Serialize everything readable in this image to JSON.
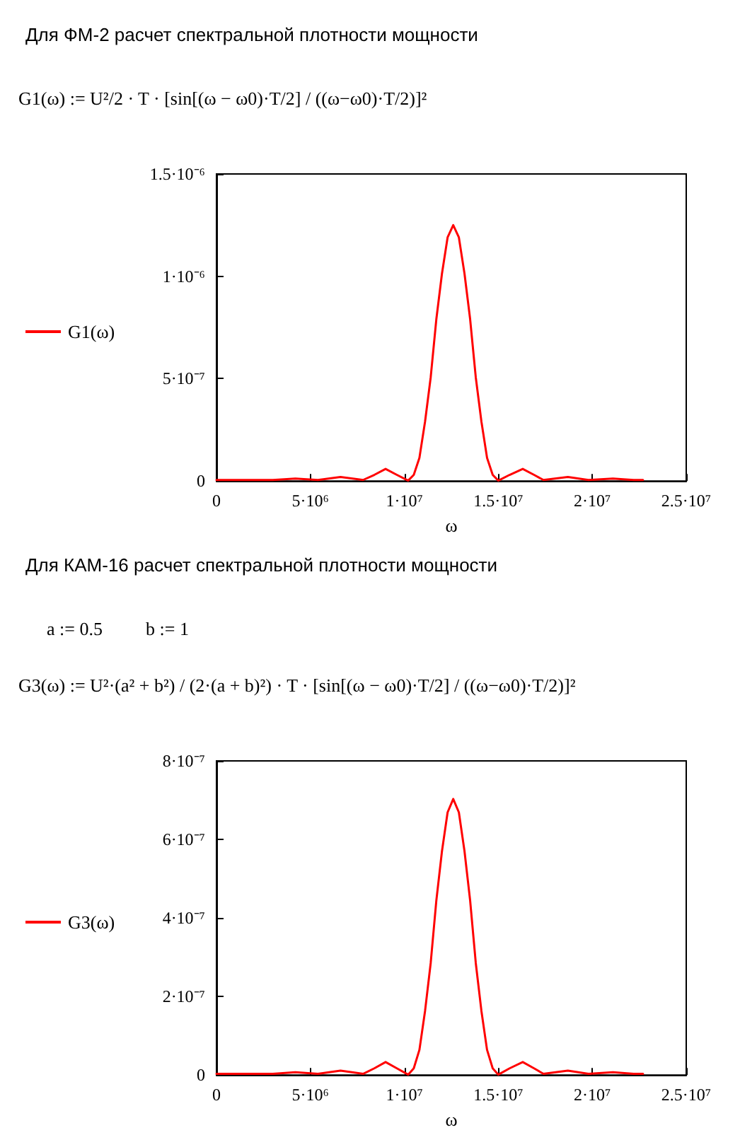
{
  "chart_data": [
    {
      "type": "line",
      "title": "Для ФМ-2 расчет спектральной плотности мощности",
      "annotations": [
        "G1(ω) := U²/2 · T · [sin[(ω − ω0)·T/2] / ((ω−ω0)·T/2)]²"
      ],
      "xlabel": "ω",
      "legend": "left",
      "marker": "none",
      "line_style": "solid",
      "grid": false,
      "x": [
        0,
        3000000,
        4200000,
        5400000,
        6600000,
        7800000,
        8400000,
        9000000,
        9600000,
        10200000,
        10500000,
        10800000,
        11100000,
        11400000,
        11700000,
        12000000,
        12300000,
        12600000,
        12900000,
        13200000,
        13500000,
        13800000,
        14100000,
        14400000,
        14700000,
        15000000,
        15600000,
        16300000,
        16900000,
        17400000,
        18700000,
        19800000,
        21100000,
        22200000,
        22700000
      ],
      "series": [
        {
          "name": "G1(ω)",
          "color": "#ff0000",
          "values": [
            5e-09,
            5e-09,
            1.2e-08,
            5e-09,
            2e-08,
            5e-09,
            3e-08,
            5.9e-08,
            3e-08,
            2e-09,
            3e-08,
            1.13e-07,
            2.9e-07,
            5.06e-07,
            7.9e-07,
            1.013e-06,
            1.19e-06,
            1.25e-06,
            1.19e-06,
            1.013e-06,
            7.9e-07,
            5.06e-07,
            2.9e-07,
            1.13e-07,
            3e-08,
            2e-09,
            3e-08,
            5.9e-08,
            3e-08,
            5e-09,
            2e-08,
            5e-09,
            1.2e-08,
            5e-09,
            5e-09
          ]
        }
      ],
      "xlim": [
        0,
        25000000
      ],
      "xticks": [
        0,
        {
          "value": 5000000,
          "label": "5·10⁶"
        },
        {
          "value": 10000000,
          "label": "1·10⁷"
        },
        {
          "value": 15000000,
          "label": "1.5·10⁷"
        },
        {
          "value": 20000000,
          "label": "2·10⁷"
        },
        {
          "value": 25000000,
          "label": "2.5·10⁷"
        }
      ],
      "ylim": [
        0,
        1.5e-06
      ],
      "yticks": [
        0,
        {
          "value": 5e-07,
          "label": "5·10⁻⁷"
        },
        {
          "value": 1e-06,
          "label": "1·10⁻⁶"
        },
        {
          "value": 1.5e-06,
          "label": "1.5·10⁻⁶"
        }
      ]
    },
    {
      "type": "line",
      "title": "Для КАМ-16 расчет спектральной плотности мощности",
      "annotations": [
        "a := 0.5",
        "b := 1",
        "G3(ω) := U²·(a² + b²) / (2·(a + b)²) · T · [sin[(ω − ω0)·T/2] / ((ω−ω0)·T/2)]²"
      ],
      "xlabel": "ω",
      "legend": "left",
      "marker": "none",
      "line_style": "solid",
      "grid": false,
      "x": [
        0,
        3000000,
        4200000,
        5400000,
        6600000,
        7800000,
        8400000,
        9000000,
        9600000,
        10200000,
        10500000,
        10800000,
        11100000,
        11400000,
        11700000,
        12000000,
        12300000,
        12600000,
        12900000,
        13200000,
        13500000,
        13800000,
        14100000,
        14400000,
        14700000,
        15000000,
        15600000,
        16300000,
        16900000,
        17400000,
        18700000,
        19800000,
        21100000,
        22200000,
        22700000
      ],
      "series": [
        {
          "name": "G3(ω)",
          "color": "#ff0000",
          "values": [
            3e-09,
            3e-09,
            7e-09,
            3e-09,
            1.1e-08,
            3e-09,
            1.7e-08,
            3.3e-08,
            1.7e-08,
            1e-09,
            1.7e-08,
            6.4e-08,
            1.63e-07,
            2.85e-07,
            4.44e-07,
            5.7e-07,
            6.69e-07,
            7.03e-07,
            6.69e-07,
            5.7e-07,
            4.44e-07,
            2.85e-07,
            1.63e-07,
            6.4e-08,
            1.7e-08,
            1e-09,
            1.7e-08,
            3.3e-08,
            1.7e-08,
            3e-09,
            1.1e-08,
            3e-09,
            7e-09,
            3e-09,
            3e-09
          ]
        }
      ],
      "xlim": [
        0,
        25000000
      ],
      "xticks": [
        0,
        {
          "value": 5000000,
          "label": "5·10⁶"
        },
        {
          "value": 10000000,
          "label": "1·10⁷"
        },
        {
          "value": 15000000,
          "label": "1.5·10⁷"
        },
        {
          "value": 20000000,
          "label": "2·10⁷"
        },
        {
          "value": 25000000,
          "label": "2.5·10⁷"
        }
      ],
      "ylim": [
        0,
        8e-07
      ],
      "yticks": [
        0,
        {
          "value": 2e-07,
          "label": "2·10⁻⁷"
        },
        {
          "value": 4e-07,
          "label": "4·10⁻⁷"
        },
        {
          "value": 6e-07,
          "label": "6·10⁻⁷"
        },
        {
          "value": 8e-07,
          "label": "8·10⁻⁷"
        }
      ]
    }
  ]
}
